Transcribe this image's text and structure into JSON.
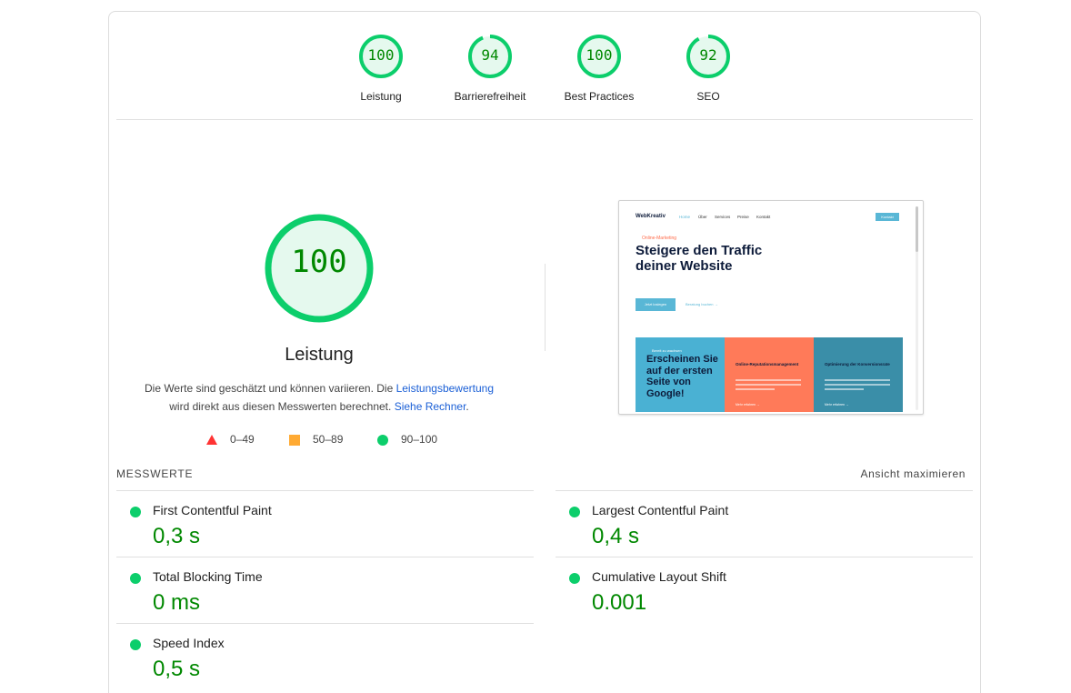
{
  "categories": [
    {
      "score": "100",
      "label": "Leistung",
      "fraction": 1.0
    },
    {
      "score": "94",
      "label": "Barrierefreiheit",
      "fraction": 0.94
    },
    {
      "score": "100",
      "label": "Best Practices",
      "fraction": 1.0
    },
    {
      "score": "92",
      "label": "SEO",
      "fraction": 0.92
    }
  ],
  "main": {
    "score": "100",
    "title": "Leistung",
    "desc_part1": "Die Werte sind geschätzt und können variieren. Die ",
    "desc_link1": "Leistungsbewertung",
    "desc_part2": "wird direkt aus diesen Messwerten berechnet. ",
    "desc_link2": "Siehe Rechner",
    "desc_part3": "."
  },
  "legend": [
    {
      "range": "0–49",
      "icon": "triangle-icon",
      "color": "#ff3333"
    },
    {
      "range": "50–89",
      "icon": "square-icon",
      "color": "#ffaa33"
    },
    {
      "range": "90–100",
      "icon": "circle-icon",
      "color": "#0cce6b"
    }
  ],
  "screenshot": {
    "logo": "WebKreativ",
    "nav": [
      "Home",
      "Über",
      "Services",
      "Preise",
      "Kontakt"
    ],
    "nav_button": "Kontakt",
    "kicker": "Online-Marketing",
    "headline": "Steigere den Traffic deiner Website",
    "cta": "Jetzt loslegen",
    "link": "Beratung buchen →",
    "panels": [
      {
        "kicker": "Bereit zu wachsen",
        "title": "Erscheinen Sie auf der ersten Seite von Google!"
      },
      {
        "title": "Online-Reputationsmanagement",
        "more": "Mehr erfahren →"
      },
      {
        "title": "Optimierung der Konversionsrate",
        "more": "Mehr erfahren →"
      }
    ]
  },
  "metrics": {
    "header": "MESSWERTE",
    "toggle": "Ansicht maximieren",
    "items": [
      {
        "name": "First Contentful Paint",
        "value": "0,3 s"
      },
      {
        "name": "Largest Contentful Paint",
        "value": "0,4 s"
      },
      {
        "name": "Total Blocking Time",
        "value": "0 ms"
      },
      {
        "name": "Cumulative Layout Shift",
        "value": "0.001"
      },
      {
        "name": "Speed Index",
        "value": "0,5 s"
      }
    ]
  },
  "colors": {
    "pass": "#0cce6b",
    "pass_fill": "#e5f9ee",
    "pass_text": "#008800",
    "link": "#1a5fd6"
  }
}
